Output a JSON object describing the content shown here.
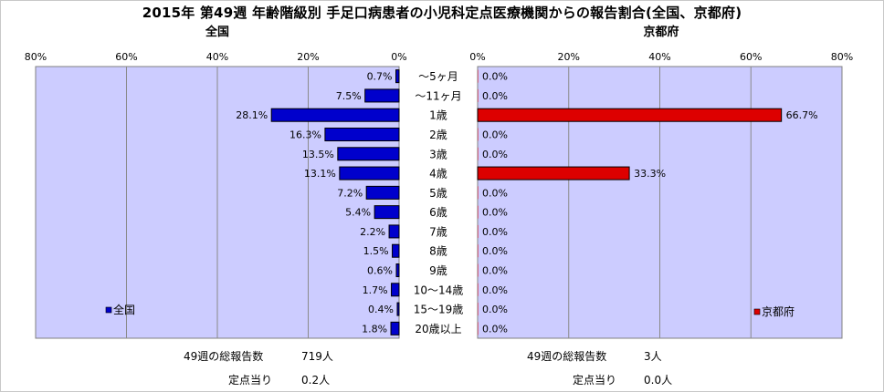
{
  "title": "2015年 第49週 年齢階級別 手足口病患者の小児科定点医療機関からの報告割合(全国、京都府)",
  "colors": {
    "plot_bg": "#ccccff",
    "national_bar": "#0000cc",
    "kyoto_bar": "#dd0000",
    "grid": "#8a8a8a"
  },
  "chart_data": [
    {
      "type": "bar",
      "orientation": "horizontal-reversed",
      "title": "全国",
      "legend": "全国",
      "legend_position": "bottom-left",
      "xlim": [
        0,
        80
      ],
      "x_ticks": [
        "80%",
        "60%",
        "40%",
        "20%",
        "0%"
      ],
      "categories": [
        "〜5ヶ月",
        "〜11ヶ月",
        "1歳",
        "2歳",
        "3歳",
        "4歳",
        "5歳",
        "6歳",
        "7歳",
        "8歳",
        "9歳",
        "10〜14歳",
        "15〜19歳",
        "20歳以上"
      ],
      "values": [
        0.7,
        7.5,
        28.1,
        16.3,
        13.5,
        13.1,
        7.2,
        5.4,
        2.2,
        1.5,
        0.6,
        1.7,
        0.4,
        1.8
      ],
      "labels": [
        "0.7%",
        "7.5%",
        "28.1%",
        "16.3%",
        "13.5%",
        "13.1%",
        "7.2%",
        "5.4%",
        "2.2%",
        "1.5%",
        "0.6%",
        "1.7%",
        "0.4%",
        "1.8%"
      ],
      "grid": true
    },
    {
      "type": "bar",
      "orientation": "horizontal",
      "title": "京都府",
      "legend": "京都府",
      "legend_position": "bottom-right",
      "xlim": [
        0,
        80
      ],
      "x_ticks": [
        "0%",
        "20%",
        "40%",
        "60%",
        "80%"
      ],
      "categories": [
        "〜5ヶ月",
        "〜11ヶ月",
        "1歳",
        "2歳",
        "3歳",
        "4歳",
        "5歳",
        "6歳",
        "7歳",
        "8歳",
        "9歳",
        "10〜14歳",
        "15〜19歳",
        "20歳以上"
      ],
      "values": [
        0,
        0,
        66.7,
        0,
        0,
        33.3,
        0,
        0,
        0,
        0,
        0,
        0,
        0,
        0
      ],
      "labels": [
        "0.0%",
        "0.0%",
        "66.7%",
        "0.0%",
        "0.0%",
        "33.3%",
        "0.0%",
        "0.0%",
        "0.0%",
        "0.0%",
        "0.0%",
        "0.0%",
        "0.0%",
        "0.0%"
      ],
      "grid": true
    }
  ],
  "footer": {
    "national": {
      "total_label": "49週の総報告数",
      "total_value": "719人",
      "per_label": "定点当り",
      "per_value": "0.2人"
    },
    "kyoto": {
      "total_label": "49週の総報告数",
      "total_value": "3人",
      "per_label": "定点当り",
      "per_value": "0.0人"
    }
  }
}
